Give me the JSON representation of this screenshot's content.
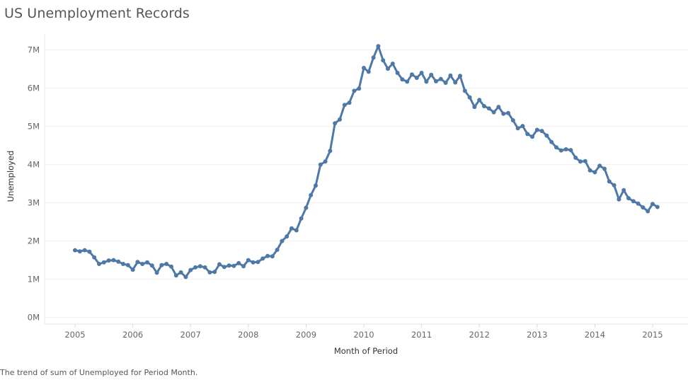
{
  "title": "US Unemployment Records",
  "caption": "The trend of sum of Unemployed for Period Month.",
  "chart_data": {
    "type": "line",
    "title": "US Unemployment Records",
    "xlabel": "Month of Period",
    "ylabel": "Unemployed",
    "ylim": [
      0,
      7000000
    ],
    "yticks": [
      0,
      1000000,
      2000000,
      3000000,
      4000000,
      5000000,
      6000000,
      7000000
    ],
    "ytick_labels": [
      "0M",
      "1M",
      "2M",
      "3M",
      "4M",
      "5M",
      "6M",
      "7M"
    ],
    "xticks": [
      2005,
      2006,
      2007,
      2008,
      2009,
      2010,
      2011,
      2012,
      2013,
      2014,
      2015
    ],
    "xtick_labels": [
      "2005",
      "2006",
      "2007",
      "2008",
      "2009",
      "2010",
      "2011",
      "2012",
      "2013",
      "2014",
      "2015"
    ],
    "grid": true,
    "line_color": "#4e79a7",
    "series": [
      {
        "name": "Unemployed",
        "start": "2005-01",
        "values": [
          1760000,
          1730000,
          1760000,
          1720000,
          1570000,
          1400000,
          1440000,
          1490000,
          1500000,
          1460000,
          1400000,
          1370000,
          1250000,
          1450000,
          1400000,
          1440000,
          1360000,
          1170000,
          1370000,
          1400000,
          1330000,
          1100000,
          1180000,
          1060000,
          1240000,
          1310000,
          1340000,
          1310000,
          1180000,
          1190000,
          1390000,
          1320000,
          1360000,
          1350000,
          1420000,
          1340000,
          1500000,
          1440000,
          1450000,
          1540000,
          1610000,
          1600000,
          1770000,
          2000000,
          2120000,
          2330000,
          2280000,
          2590000,
          2870000,
          3200000,
          3450000,
          4000000,
          4080000,
          4360000,
          5080000,
          5180000,
          5560000,
          5620000,
          5930000,
          5990000,
          6530000,
          6430000,
          6800000,
          7100000,
          6730000,
          6510000,
          6640000,
          6400000,
          6230000,
          6170000,
          6360000,
          6270000,
          6400000,
          6170000,
          6350000,
          6180000,
          6240000,
          6140000,
          6330000,
          6150000,
          6320000,
          5930000,
          5760000,
          5510000,
          5690000,
          5530000,
          5470000,
          5370000,
          5510000,
          5330000,
          5350000,
          5160000,
          4950000,
          5010000,
          4800000,
          4730000,
          4910000,
          4880000,
          4760000,
          4590000,
          4450000,
          4370000,
          4400000,
          4380000,
          4180000,
          4080000,
          4090000,
          3850000,
          3800000,
          3970000,
          3890000,
          3560000,
          3460000,
          3090000,
          3330000,
          3120000,
          3040000,
          2980000,
          2880000,
          2780000,
          2970000,
          2890000
        ]
      }
    ]
  }
}
